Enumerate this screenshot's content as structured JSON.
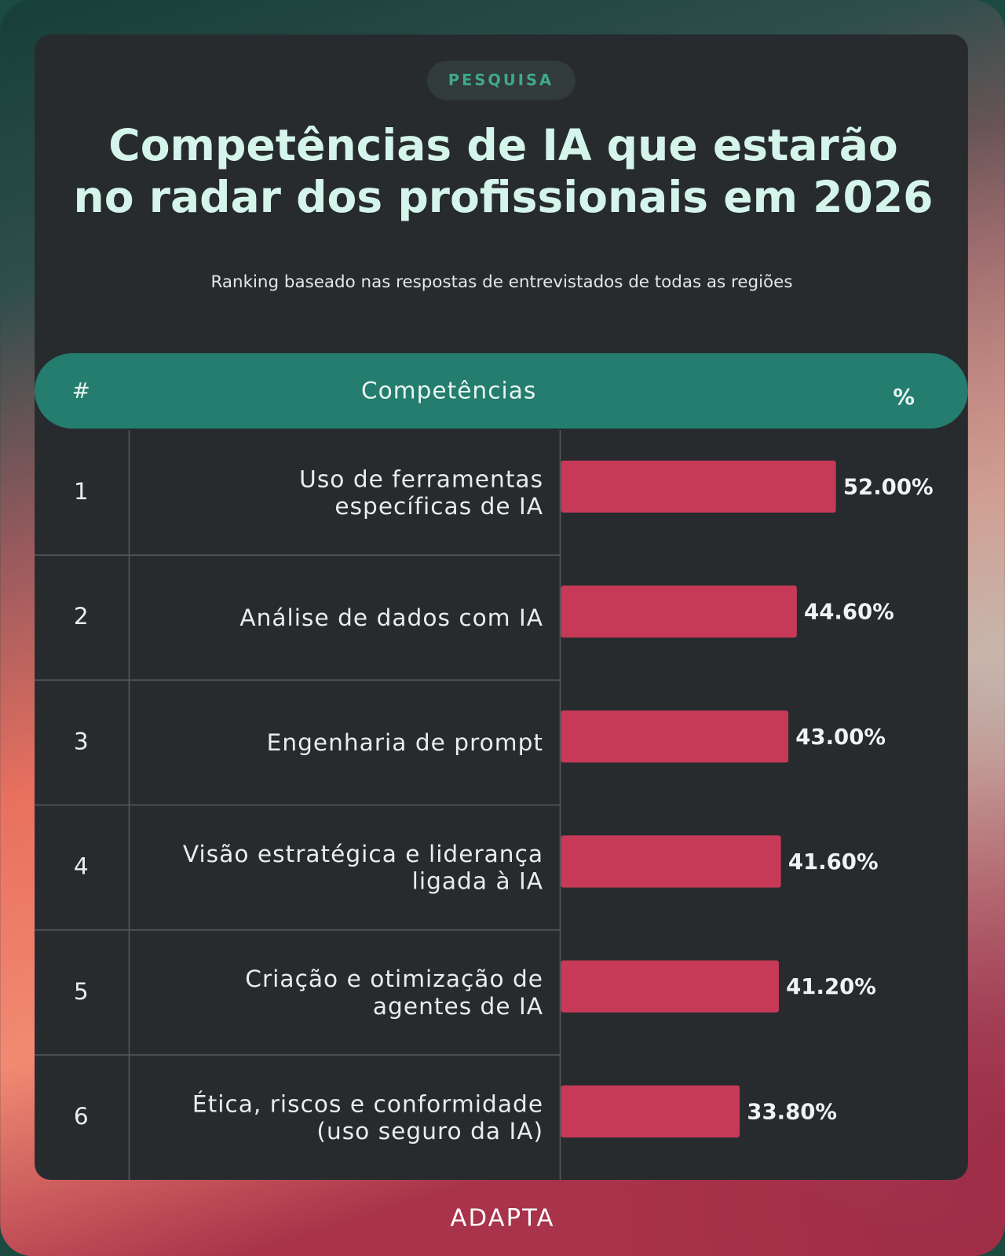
{
  "badge": "PESQUISA",
  "chart_data": {
    "type": "bar",
    "title": "Competências de IA que estarão\nno radar dos profissionais em 2026",
    "subtitle": "Ranking baseado nas respostas de entrevistados de todas as regiões",
    "header": {
      "rank": "#",
      "label": "Competências",
      "value": "%"
    },
    "ranks": [
      1,
      2,
      3,
      4,
      5,
      6
    ],
    "categories": [
      "Uso de ferramentas\nespecíficas de IA",
      "Análise de dados com IA",
      "Engenharia de prompt",
      "Visão estratégica e liderança\nligada à IA",
      "Criação e otimização de\nagentes de IA",
      "Ética, riscos e conformidade\n(uso seguro da IA)"
    ],
    "values": [
      52,
      44.6,
      43,
      41.6,
      41.2,
      33.8
    ],
    "value_labels": [
      "52.00%",
      "44.60%",
      "43.00%",
      "41.60%",
      "41.20%",
      "33.80%"
    ],
    "color": "#c63a58"
  },
  "brand": "ADAPTA"
}
